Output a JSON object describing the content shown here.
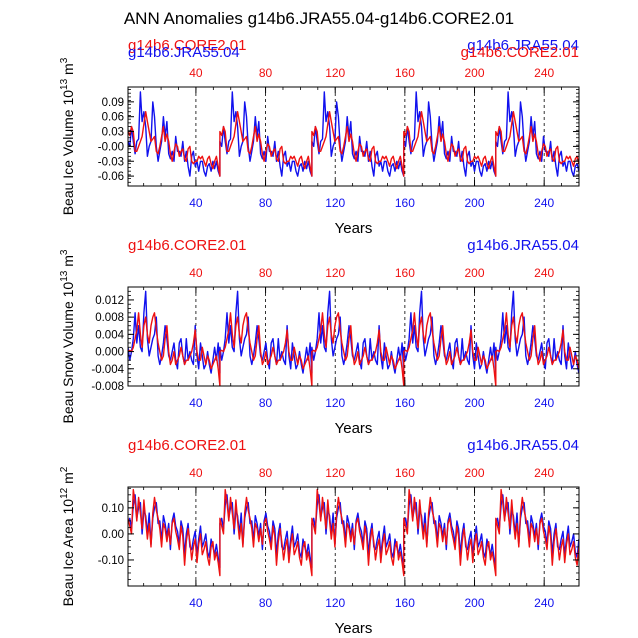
{
  "title": "ANN Anomalies g14b6.JRA55.04-g14b6.CORE2.01",
  "colors": {
    "core": "#ee1111",
    "jra": "#1111ee",
    "axis": "#000000"
  },
  "chart_data": [
    {
      "type": "line",
      "name": "ice-volume",
      "ylabel": "Beau Ice Volume 10",
      "ylabel_sup": "13",
      "ylabel_unit": " m",
      "ylabel_unit_sup": "3",
      "xlabel": "Years",
      "xlim": [
        1,
        260
      ],
      "ylim": [
        -0.08,
        0.12
      ],
      "yticks": [
        0.09,
        0.06,
        0.03,
        0.0,
        -0.03,
        -0.06
      ],
      "ytick_labels": [
        "0.09",
        "0.06",
        "0.03",
        "-0.00",
        "-0.03",
        "-0.06"
      ],
      "xticks": [
        40,
        80,
        120,
        160,
        200,
        240
      ],
      "xtick_labels": [
        "40",
        "80",
        "120",
        "160",
        "200",
        "240"
      ],
      "top_left_label": "g14b6.CORE2.01",
      "top_left_label_2": "g14b6.JRA55.04",
      "top_right_label": "g14b6.JRA55.04",
      "top_right_label_2": "g14b6.CORE2.01",
      "grid_x": [
        40,
        80,
        120,
        160,
        200,
        240
      ],
      "period": 52.8,
      "series": [
        {
          "name": "g14b6.CORE2.01",
          "color": "#ee1111",
          "values": [
            0.03,
            0.022,
            0.04,
            0.03,
            -0.01,
            -0.01,
            0.0,
            0.01,
            0.02,
            0.045,
            0.07,
            0.05,
            0.03,
            0.01,
            0.015,
            0.02,
            -0.01,
            -0.015,
            0.0,
            0.02,
            0.04,
            0.01,
            0.025,
            0.01,
            -0.015,
            -0.03,
            -0.01,
            0.005,
            0.0,
            -0.02,
            -0.01,
            -0.005,
            -0.025,
            -0.03,
            -0.005,
            0.0,
            -0.03,
            -0.035,
            -0.03,
            -0.03,
            -0.02,
            -0.025,
            -0.02,
            -0.03,
            -0.04,
            -0.025,
            -0.02,
            -0.035,
            -0.045,
            -0.03,
            -0.02,
            -0.04,
            -0.06
          ]
        },
        {
          "name": "g14b6.JRA55.04",
          "color": "#1111ee",
          "values": [
            0.01,
            0.0,
            0.04,
            0.01,
            -0.015,
            0.01,
            0.015,
            0.11,
            0.05,
            0.07,
            0.04,
            -0.02,
            0.0,
            0.01,
            0.09,
            0.06,
            0.0,
            -0.03,
            -0.01,
            0.01,
            0.06,
            0.02,
            0.05,
            -0.015,
            -0.025,
            -0.01,
            -0.03,
            0.02,
            -0.01,
            -0.01,
            -0.02,
            0.01,
            -0.03,
            -0.01,
            -0.04,
            -0.06,
            -0.02,
            -0.01,
            -0.04,
            -0.03,
            -0.05,
            -0.03,
            -0.03,
            -0.05,
            -0.06,
            -0.04,
            -0.035,
            -0.05,
            -0.03,
            -0.045,
            -0.03,
            -0.05,
            -0.06
          ]
        }
      ]
    },
    {
      "type": "line",
      "name": "snow-volume",
      "ylabel": "Beau Snow Volume 10",
      "ylabel_sup": "13",
      "ylabel_unit": " m",
      "ylabel_unit_sup": "3",
      "xlabel": "Years",
      "xlim": [
        1,
        260
      ],
      "ylim": [
        -0.008,
        0.015
      ],
      "yticks": [
        0.012,
        0.008,
        0.004,
        0.0,
        -0.004,
        -0.008
      ],
      "ytick_labels": [
        "0.012",
        "0.008",
        "0.004",
        "0.000",
        "-0.004",
        "-0.008"
      ],
      "xticks": [
        40,
        80,
        120,
        160,
        200,
        240
      ],
      "xtick_labels": [
        "40",
        "80",
        "120",
        "160",
        "200",
        "240"
      ],
      "top_left_label": "g14b6.CORE2.01",
      "top_right_label": "g14b6.JRA55.04",
      "grid_x": [
        40,
        80,
        120,
        160,
        200,
        240
      ],
      "period": 52.8,
      "series": [
        {
          "name": "g14b6.CORE2.01",
          "color": "#ee1111",
          "values": [
            0.0,
            0.0003,
            0.0,
            0.001,
            0.003,
            0.005,
            0.009,
            0.004,
            0.001,
            0.006,
            0.008,
            0.004,
            0.002,
            0.006,
            0.008,
            0.009,
            0.005,
            0.002,
            0.0,
            -0.002,
            -0.001,
            0.003,
            0.006,
            0.0,
            -0.003,
            -0.002,
            0.0,
            -0.003,
            -0.002,
            -0.001,
            0.001,
            -0.001,
            -0.003,
            -0.002,
            -0.002,
            -0.001,
            0.0,
            0.002,
            0.005,
            0.0,
            -0.002,
            -0.002,
            0.001,
            -0.001,
            -0.003,
            -0.001,
            -0.002,
            -0.004,
            -0.003,
            -0.002,
            -0.001,
            -0.004,
            -0.008
          ]
        },
        {
          "name": "g14b6.JRA55.04",
          "color": "#1111ee",
          "values": [
            0.001,
            -0.002,
            0.0,
            0.003,
            0.009,
            0.002,
            0.006,
            0.001,
            0.0,
            0.009,
            0.014,
            0.003,
            -0.001,
            0.001,
            0.003,
            0.004,
            0.008,
            -0.001,
            -0.003,
            -0.001,
            0.002,
            0.006,
            0.003,
            -0.001,
            -0.002,
            0.0,
            0.002,
            -0.002,
            -0.004,
            0.002,
            0.003,
            -0.001,
            -0.003,
            0.003,
            -0.002,
            0.0,
            -0.002,
            -0.003,
            0.006,
            -0.001,
            -0.004,
            0.002,
            -0.001,
            -0.004,
            -0.003,
            0.0,
            -0.003,
            -0.005,
            -0.002,
            0.001,
            -0.002,
            0.002,
            -0.005
          ]
        }
      ]
    },
    {
      "type": "line",
      "name": "ice-area",
      "ylabel": "Beau Ice Area 10",
      "ylabel_sup": "12",
      "ylabel_unit": " m",
      "ylabel_unit_sup": "2",
      "xlabel": "Years",
      "xlim": [
        1,
        260
      ],
      "ylim": [
        -0.2,
        0.18
      ],
      "yticks": [
        0.1,
        0.0,
        -0.1
      ],
      "ytick_labels": [
        "0.10",
        "0.00",
        "-0.10"
      ],
      "xticks": [
        40,
        80,
        120,
        160,
        200,
        240
      ],
      "xtick_labels": [
        "40",
        "80",
        "120",
        "160",
        "200",
        "240"
      ],
      "top_left_label": "g14b6.CORE2.01",
      "top_right_label": "g14b6.JRA55.04",
      "grid_x": [
        40,
        80,
        120,
        160,
        200,
        240
      ],
      "period": 52.8,
      "series": [
        {
          "name": "g14b6.CORE2.01",
          "color": "#ee1111",
          "values": [
            0.06,
            0.03,
            0.0,
            0.17,
            0.12,
            0.05,
            0.14,
            0.08,
            0.02,
            0.13,
            0.05,
            -0.02,
            0.04,
            -0.05,
            0.08,
            0.14,
            0.09,
            0.06,
            0.02,
            -0.05,
            0.04,
            0.02,
            -0.03,
            0.02,
            -0.04,
            0.04,
            0.06,
            0.01,
            -0.02,
            -0.06,
            0.03,
            -0.01,
            -0.12,
            -0.03,
            0.02,
            -0.03,
            -0.1,
            -0.05,
            -0.02,
            -0.11,
            -0.04,
            0.0,
            -0.08,
            -0.06,
            -0.03,
            -0.09,
            -0.12,
            -0.05,
            -0.03,
            -0.1,
            -0.07,
            -0.11,
            -0.16
          ]
        },
        {
          "name": "g14b6.JRA55.04",
          "color": "#1111ee",
          "values": [
            0.04,
            0.06,
            0.02,
            0.11,
            0.15,
            0.06,
            0.1,
            0.12,
            0.0,
            0.09,
            0.07,
            0.0,
            0.08,
            -0.04,
            0.06,
            0.1,
            0.12,
            0.04,
            0.05,
            -0.03,
            0.07,
            0.04,
            -0.01,
            0.04,
            -0.06,
            0.05,
            0.08,
            0.03,
            0.01,
            -0.04,
            0.05,
            0.02,
            -0.08,
            0.0,
            0.04,
            -0.05,
            -0.06,
            -0.02,
            0.01,
            -0.08,
            -0.02,
            0.03,
            -0.05,
            -0.03,
            0.0,
            -0.07,
            -0.09,
            -0.02,
            -0.05,
            -0.08,
            -0.04,
            -0.09,
            -0.13
          ]
        }
      ]
    }
  ]
}
